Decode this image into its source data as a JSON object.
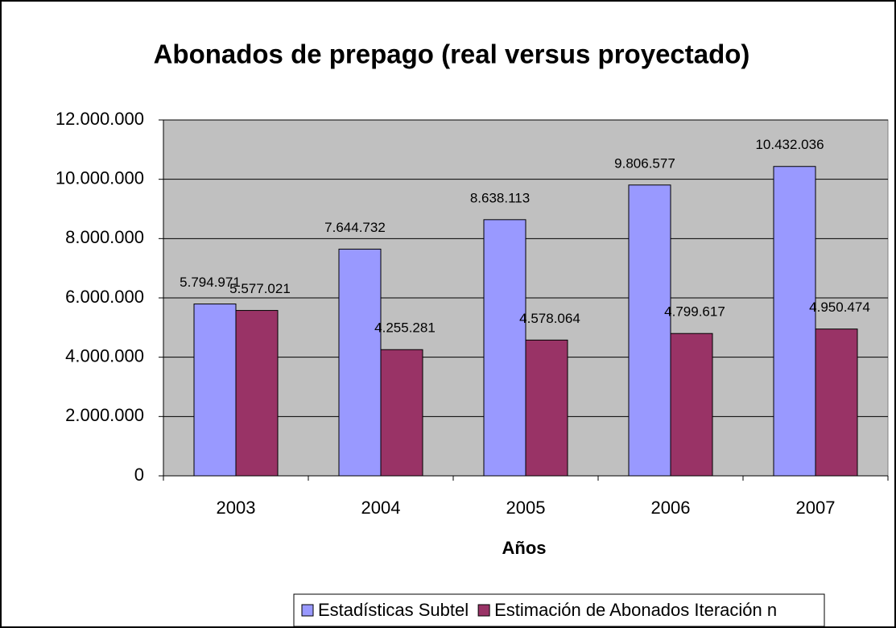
{
  "chart_data": {
    "type": "bar",
    "title": "Abonados de prepago (real versus proyectado)",
    "x_label": "Años",
    "categories": [
      "2003",
      "2004",
      "2005",
      "2006",
      "2007"
    ],
    "series": [
      {
        "name": "Estadísticas Subtel",
        "color": "#9999ff",
        "values": [
          5794971,
          7644732,
          8638113,
          9806577,
          10432036
        ],
        "value_labels": [
          "5.794.971",
          "7.644.732",
          "8.638.113",
          "9.806.577",
          "10.432.036"
        ]
      },
      {
        "name": "Estimación de Abonados Iteración n",
        "color": "#993366",
        "values": [
          5577021,
          4255281,
          4578064,
          4799617,
          4950474
        ],
        "value_labels": [
          "5.577.021",
          "4.255.281",
          "4.578.064",
          "4.799.617",
          "4.950.474"
        ]
      }
    ],
    "ylim": [
      0,
      12000000
    ],
    "yticks": [
      {
        "value": 0,
        "label": "0"
      },
      {
        "value": 2000000,
        "label": "2.000.000"
      },
      {
        "value": 4000000,
        "label": "4.000.000"
      },
      {
        "value": 6000000,
        "label": "6.000.000"
      },
      {
        "value": 8000000,
        "label": "8.000.000"
      },
      {
        "value": 10000000,
        "label": "10.000.000"
      },
      {
        "value": 12000000,
        "label": "12.000.000"
      }
    ],
    "grid": true,
    "legend": "bottom",
    "plot_background": "#c0c0c0"
  }
}
